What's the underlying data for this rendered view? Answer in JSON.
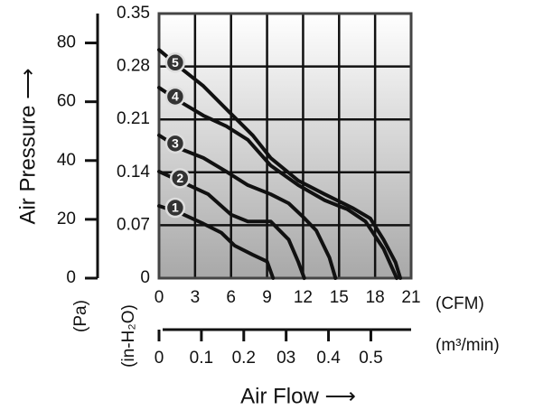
{
  "chart_data": {
    "type": "line",
    "y_label": "Air Pressure ⟶",
    "x_label": "Air Flow ⟶",
    "x_unit": "(CFM)",
    "y_unit": "(in-H₂O)",
    "xlim": [
      0,
      21
    ],
    "xticks": [
      0,
      3,
      6,
      9,
      12,
      15,
      18,
      21
    ],
    "ylim": [
      0,
      0.35
    ],
    "yticks": [
      0,
      0.07,
      0.14,
      0.21,
      0.28,
      0.35
    ],
    "grid": true,
    "pa_axis": {
      "unit": "(Pa)",
      "ylim": [
        0,
        90
      ],
      "yticks": [
        0,
        20,
        40,
        60,
        80
      ]
    },
    "m3_axis": {
      "unit": "(m³/min)",
      "xlim": [
        0,
        0.595
      ],
      "xticks": [
        0,
        0.1,
        0.2,
        {
          "value": 0.3,
          "label": "03"
        },
        0.4,
        0.5
      ]
    },
    "series": [
      {
        "name": "1",
        "color": "#111111",
        "x": [
          0,
          1.8,
          3.7,
          5.2,
          6.3,
          7.8,
          9.0,
          9.5
        ],
        "values": [
          0.0956,
          0.086,
          0.072,
          0.06,
          0.043,
          0.031,
          0.022,
          0
        ]
      },
      {
        "name": "2",
        "color": "#111111",
        "x": [
          0,
          2.2,
          4.1,
          6.0,
          7.4,
          9.3,
          10.8,
          11.6,
          12.1
        ],
        "values": [
          0.141,
          0.125,
          0.111,
          0.084,
          0.075,
          0.075,
          0.051,
          0.0215,
          0
        ]
      },
      {
        "name": "3",
        "color": "#111111",
        "x": [
          0,
          1.8,
          3.7,
          5.6,
          7.4,
          9.3,
          10.8,
          12.0,
          13.1,
          14.2,
          14.7
        ],
        "values": [
          0.189,
          0.171,
          0.159,
          0.141,
          0.123,
          0.111,
          0.099,
          0.081,
          0.063,
          0.027,
          0
        ]
      },
      {
        "name": "4",
        "color": "#111111",
        "x": [
          0,
          1.8,
          3.7,
          5.6,
          7.4,
          9.3,
          11.6,
          13.8,
          15.7,
          17.2,
          18.7,
          19.8
        ],
        "values": [
          0.252,
          0.233,
          0.215,
          0.201,
          0.183,
          0.149,
          0.123,
          0.103,
          0.091,
          0.075,
          0.039,
          0
        ]
      },
      {
        "name": "5",
        "color": "#111111",
        "x": [
          0,
          1.8,
          3.7,
          5.9,
          7.8,
          9.3,
          11.6,
          13.8,
          16.1,
          17.6,
          18.7,
          19.7,
          20.1
        ],
        "values": [
          0.302,
          0.278,
          0.254,
          0.219,
          0.189,
          0.159,
          0.129,
          0.111,
          0.093,
          0.079,
          0.051,
          0.021,
          0
        ]
      }
    ]
  }
}
